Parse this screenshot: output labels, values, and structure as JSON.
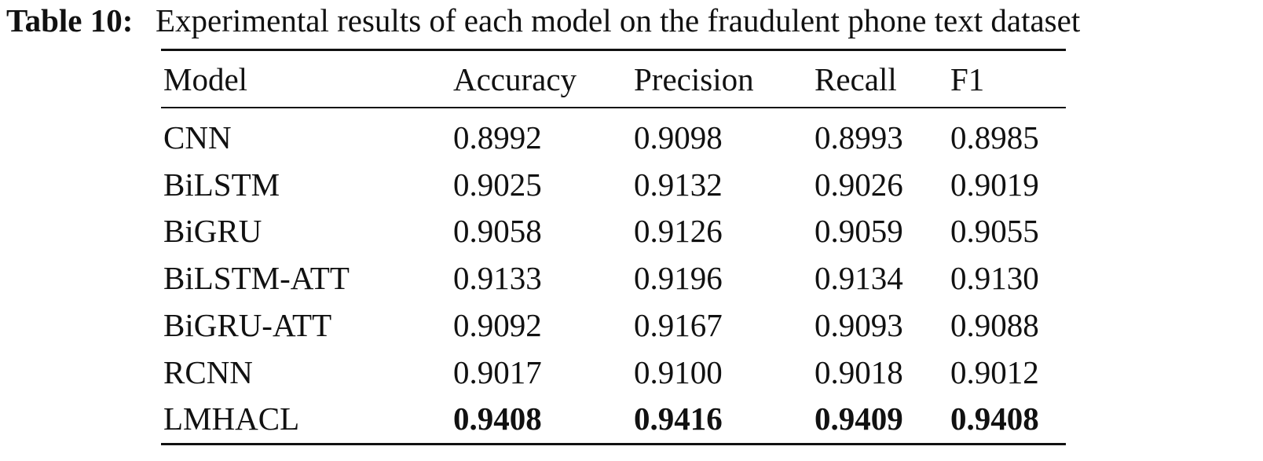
{
  "caption": {
    "label": "Table 10:",
    "text": "Experimental results of each model on the fraudulent phone text dataset"
  },
  "table": {
    "header": [
      "Model",
      "Accuracy",
      "Precision",
      "Recall",
      "F1"
    ],
    "rows": [
      [
        "CNN",
        "0.8992",
        "0.9098",
        "0.8993",
        "0.8985"
      ],
      [
        "BiLSTM",
        "0.9025",
        "0.9132",
        "0.9026",
        "0.9019"
      ],
      [
        "BiGRU",
        "0.9058",
        "0.9126",
        "0.9059",
        "0.9055"
      ],
      [
        "BiLSTM-ATT",
        "0.9133",
        "0.9196",
        "0.9134",
        "0.9130"
      ],
      [
        "BiGRU-ATT",
        "0.9092",
        "0.9167",
        "0.9093",
        "0.9088"
      ],
      [
        "RCNN",
        "0.9017",
        "0.9100",
        "0.9018",
        "0.9012"
      ],
      [
        "LMHACL",
        "0.9408",
        "0.9416",
        "0.9409",
        "0.9408"
      ]
    ]
  }
}
